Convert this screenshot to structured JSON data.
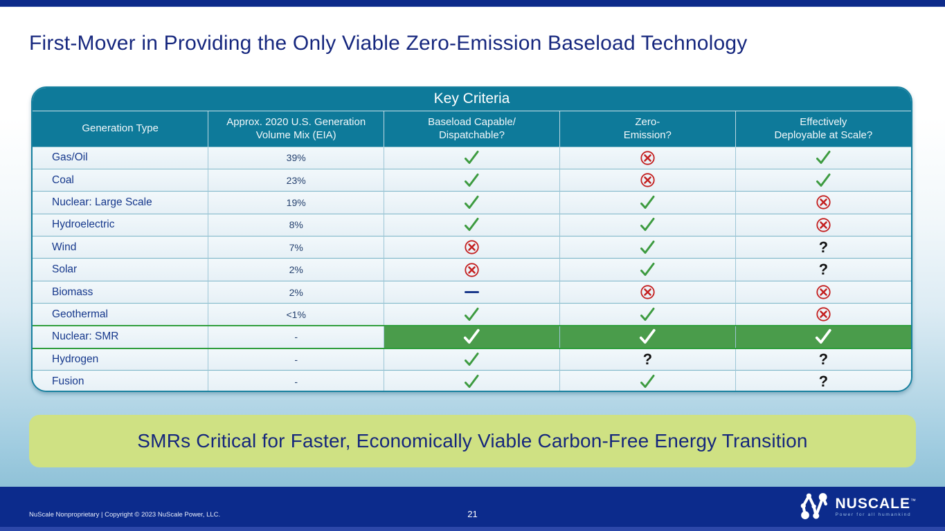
{
  "slide": {
    "title": "First-Mover in Providing the Only Viable Zero-Emission Baseload Technology",
    "banner_text": "SMRs Critical for Faster, Economically Viable Carbon-Free Energy Transition"
  },
  "table": {
    "title": "Key Criteria",
    "columns": [
      "Generation Type",
      "Approx. 2020 U.S. Generation\nVolume Mix (EIA)",
      "Baseload Capable/\nDispatchable?",
      "Zero-\nEmission?",
      "Effectively\nDeployable at Scale?"
    ],
    "rows": [
      {
        "type": "Gas/Oil",
        "mix": "39%",
        "baseload": "check",
        "zero_emission": "cross",
        "deployable": "check",
        "highlight": false
      },
      {
        "type": "Coal",
        "mix": "23%",
        "baseload": "check",
        "zero_emission": "cross",
        "deployable": "check",
        "highlight": false
      },
      {
        "type": "Nuclear: Large Scale",
        "mix": "19%",
        "baseload": "check",
        "zero_emission": "check",
        "deployable": "cross",
        "highlight": false
      },
      {
        "type": "Hydroelectric",
        "mix": "8%",
        "baseload": "check",
        "zero_emission": "check",
        "deployable": "cross",
        "highlight": false
      },
      {
        "type": "Wind",
        "mix": "7%",
        "baseload": "cross",
        "zero_emission": "check",
        "deployable": "question",
        "highlight": false
      },
      {
        "type": "Solar",
        "mix": "2%",
        "baseload": "cross",
        "zero_emission": "check",
        "deployable": "question",
        "highlight": false
      },
      {
        "type": "Biomass",
        "mix": "2%",
        "baseload": "dash",
        "zero_emission": "cross",
        "deployable": "cross",
        "highlight": false
      },
      {
        "type": "Geothermal",
        "mix": "<1%",
        "baseload": "check",
        "zero_emission": "check",
        "deployable": "cross",
        "highlight": false
      },
      {
        "type": "Nuclear: SMR",
        "mix": "-",
        "baseload": "check",
        "zero_emission": "check",
        "deployable": "check",
        "highlight": true
      },
      {
        "type": "Hydrogen",
        "mix": "-",
        "baseload": "check",
        "zero_emission": "question",
        "deployable": "question",
        "highlight": false
      },
      {
        "type": "Fusion",
        "mix": "-",
        "baseload": "check",
        "zero_emission": "check",
        "deployable": "question",
        "highlight": false
      }
    ]
  },
  "footer": {
    "copyright": "NuScale Nonproprietary | Copyright © 2023 NuScale Power, LLC.",
    "page_number": "21",
    "logo": {
      "name": "NUSCALE",
      "tm": "™",
      "tagline": "Power for all humankind"
    }
  },
  "colors": {
    "top_bar_navy": "#0d2b8a",
    "title_navy": "#16277e",
    "table_header_teal": "#0e7a9a",
    "check_green": "#3d9b40",
    "cross_red": "#c41f1f",
    "highlight_row_green": "#4a9c4b",
    "banner_green": "#cfe183",
    "footer_navy": "#0c2b8c"
  }
}
